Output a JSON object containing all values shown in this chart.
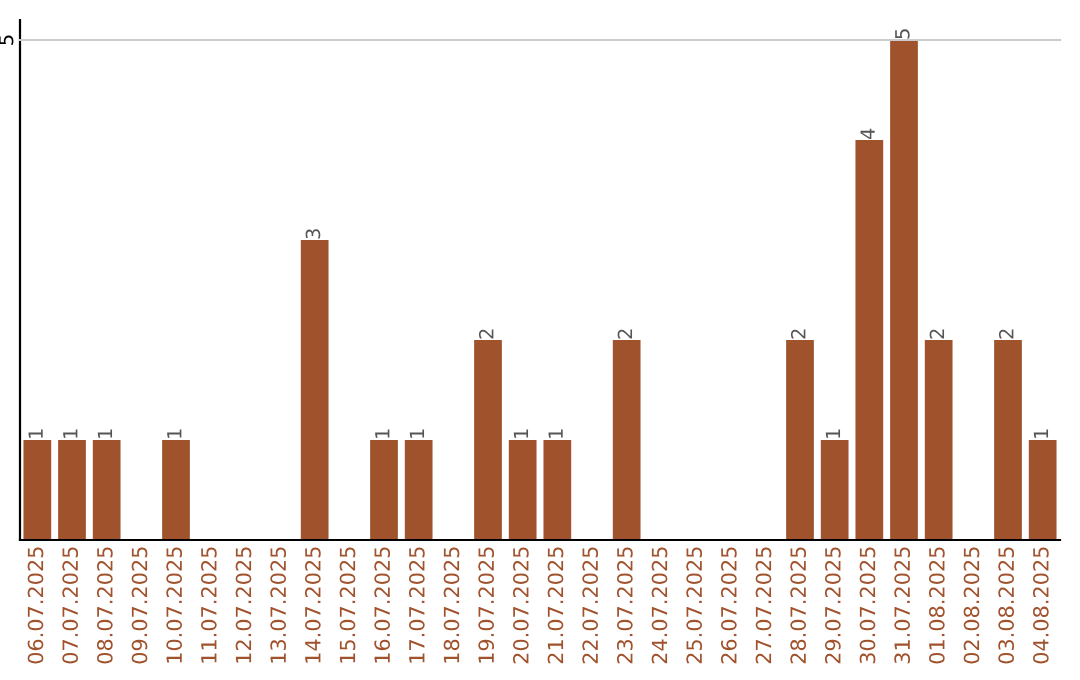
{
  "chart_data": {
    "type": "bar",
    "categories": [
      "06.07.2025",
      "07.07.2025",
      "08.07.2025",
      "09.07.2025",
      "10.07.2025",
      "11.07.2025",
      "12.07.2025",
      "13.07.2025",
      "14.07.2025",
      "15.07.2025",
      "16.07.2025",
      "17.07.2025",
      "18.07.2025",
      "19.07.2025",
      "20.07.2025",
      "21.07.2025",
      "22.07.2025",
      "23.07.2025",
      "24.07.2025",
      "25.07.2025",
      "26.07.2025",
      "27.07.2025",
      "28.07.2025",
      "29.07.2025",
      "30.07.2025",
      "31.07.2025",
      "01.08.2025",
      "02.08.2025",
      "03.08.2025",
      "04.08.2025"
    ],
    "values": [
      1,
      1,
      1,
      0,
      1,
      0,
      0,
      0,
      3,
      0,
      1,
      1,
      0,
      2,
      1,
      1,
      0,
      2,
      0,
      0,
      0,
      0,
      2,
      1,
      4,
      5,
      2,
      0,
      2,
      1
    ],
    "value_labels": [
      "1",
      "1",
      "1",
      null,
      "1",
      null,
      null,
      null,
      "3",
      null,
      "1",
      "1",
      null,
      "2",
      "1",
      "1",
      null,
      "2",
      null,
      null,
      null,
      null,
      "2",
      "1",
      "4",
      "5",
      "2",
      null,
      "2",
      "1"
    ],
    "color": "#a0522d",
    "ylim": [
      0,
      5.2
    ],
    "yticks": [
      5
    ],
    "grid": "y"
  }
}
